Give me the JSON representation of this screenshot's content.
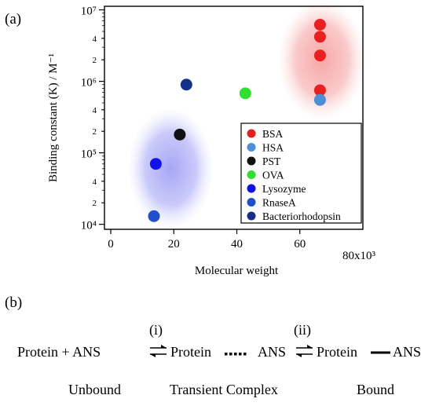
{
  "panel_a_label": "(a)",
  "panel_b_label": "(b)",
  "chart_data": {
    "type": "scatter",
    "title": "",
    "xlabel": "Molecular weight",
    "ylabel": "Binding constant (K) / M⁻¹",
    "x_multiplier_label": "80x10³",
    "xlim": [
      -2,
      80
    ],
    "ylim_log10": [
      3.93,
      7.05
    ],
    "y_scale": "log",
    "x_ticks": [
      0,
      20,
      40,
      60
    ],
    "x_tick_labels": [
      "0",
      "20",
      "40",
      "60"
    ],
    "y_major_ticks": [
      10000,
      100000,
      1000000,
      10000000
    ],
    "y_major_labels": [
      "10⁴",
      "10⁵",
      "10⁶",
      "10⁷"
    ],
    "y_minor_ticks": [
      20000,
      40000,
      200000,
      400000,
      2000000,
      4000000
    ],
    "y_minor_labels": [
      "2",
      "4",
      "2",
      "4",
      "2",
      "4"
    ],
    "legend_position": "bottom-right",
    "series": [
      {
        "name": "BSA",
        "color": "#e8211e",
        "points": [
          [
            66.4,
            6200000
          ],
          [
            66.4,
            4200000
          ],
          [
            66.4,
            2300000
          ],
          [
            66.4,
            750000
          ]
        ]
      },
      {
        "name": "HSA",
        "color": "#4a8fd8",
        "points": [
          [
            66.4,
            550000
          ]
        ]
      },
      {
        "name": "PST",
        "color": "#111111",
        "points": [
          [
            21.9,
            180000
          ]
        ]
      },
      {
        "name": "OVA",
        "color": "#2fe02f",
        "points": [
          [
            42.7,
            680000
          ]
        ]
      },
      {
        "name": "Lysozyme",
        "color": "#1111ee",
        "points": [
          [
            14.3,
            70000
          ]
        ]
      },
      {
        "name": "RnaseA",
        "color": "#1f4fcf",
        "points": [
          [
            13.7,
            13000
          ]
        ]
      },
      {
        "name": "Bacteriorhodopsin",
        "color": "#14308a",
        "points": [
          [
            24.0,
            900000
          ]
        ]
      }
    ],
    "regions": [
      {
        "color": "#f7a8a8",
        "center": [
          67,
          2000000
        ],
        "rx": 14,
        "ry_decades": 0.85
      },
      {
        "color": "#a8a8f7",
        "center": [
          19,
          60000
        ],
        "rx": 13.5,
        "ry_decades": 0.85
      }
    ]
  },
  "scheme": {
    "step1": "(i)",
    "step2": "(ii)",
    "reactants": "Protein + ANS",
    "protein_1": "Protein",
    "ans_1": "ANS",
    "protein_2": "Protein",
    "ans_2": "ANS",
    "unbound": "Unbound",
    "transient": "Transient Complex",
    "bound": "Bound"
  }
}
